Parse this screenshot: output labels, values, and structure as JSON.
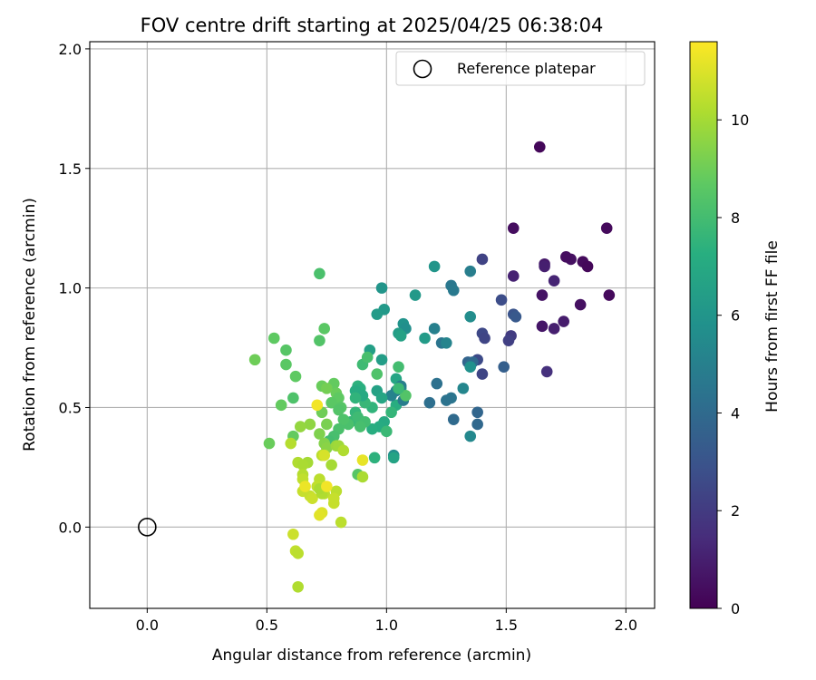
{
  "chart_data": {
    "type": "scatter",
    "title": "FOV centre drift starting at 2025/04/25 06:38:04",
    "xlabel": "Angular distance from reference (arcmin)",
    "ylabel": "Rotation from reference (arcmin)",
    "xlim": [
      -0.24,
      2.12
    ],
    "ylim": [
      -0.34,
      2.03
    ],
    "xticks": [
      "0.0",
      "0.5",
      "1.0",
      "1.5",
      "2.0"
    ],
    "yticks": [
      "0.0",
      "0.5",
      "1.0",
      "1.5",
      "2.0"
    ],
    "grid": true,
    "legend": {
      "placement": "top-right",
      "entries": [
        "Reference platepar"
      ]
    },
    "reference_point": {
      "x": 0.0,
      "y": 0.0,
      "label": "Reference platepar"
    },
    "colorbar": {
      "label": "Hours from first FF file",
      "range": [
        0,
        11.6
      ],
      "ticks": [
        "0",
        "2",
        "4",
        "6",
        "8",
        "10"
      ],
      "colormap": "viridis"
    },
    "points": [
      [
        1.64,
        1.59,
        0.2
      ],
      [
        1.92,
        1.25,
        0.3
      ],
      [
        1.53,
        1.25,
        0.4
      ],
      [
        1.65,
        0.97,
        0.6
      ],
      [
        1.66,
        1.1,
        0.8
      ],
      [
        1.66,
        1.09,
        1.0
      ],
      [
        1.53,
        1.05,
        1.1
      ],
      [
        1.7,
        1.03,
        1.2
      ],
      [
        1.77,
        1.12,
        0.5
      ],
      [
        1.75,
        1.13,
        0.4
      ],
      [
        1.82,
        1.11,
        0.3
      ],
      [
        1.84,
        1.09,
        0.2
      ],
      [
        1.93,
        0.97,
        0.3
      ],
      [
        1.81,
        0.93,
        0.5
      ],
      [
        1.65,
        0.84,
        0.7
      ],
      [
        1.74,
        0.86,
        0.9
      ],
      [
        1.7,
        0.83,
        1.0
      ],
      [
        1.67,
        0.65,
        1.6
      ],
      [
        1.52,
        0.8,
        2.0
      ],
      [
        1.51,
        0.78,
        2.2
      ],
      [
        1.4,
        1.12,
        2.3
      ],
      [
        1.4,
        0.81,
        2.5
      ],
      [
        1.41,
        0.79,
        2.4
      ],
      [
        1.38,
        0.7,
        2.6
      ],
      [
        1.4,
        0.64,
        2.4
      ],
      [
        1.48,
        0.95,
        2.7
      ],
      [
        1.53,
        0.89,
        3.0
      ],
      [
        1.54,
        0.88,
        3.2
      ],
      [
        1.49,
        0.67,
        3.5
      ],
      [
        1.34,
        0.69,
        3.7
      ],
      [
        1.36,
        0.69,
        3.9
      ],
      [
        1.35,
        0.68,
        4.1
      ],
      [
        1.38,
        0.48,
        3.8
      ],
      [
        1.38,
        0.43,
        3.9
      ],
      [
        1.28,
        0.45,
        4.0
      ],
      [
        1.18,
        0.52,
        4.2
      ],
      [
        1.21,
        0.6,
        4.3
      ],
      [
        1.27,
        0.54,
        4.5
      ],
      [
        1.25,
        0.53,
        4.4
      ],
      [
        1.23,
        0.77,
        4.5
      ],
      [
        1.27,
        1.01,
        4.6
      ],
      [
        1.28,
        0.99,
        4.7
      ],
      [
        1.35,
        1.07,
        4.9
      ],
      [
        1.2,
        0.83,
        5.0
      ],
      [
        1.25,
        0.77,
        5.2
      ],
      [
        1.32,
        0.58,
        5.3
      ],
      [
        1.35,
        0.38,
        5.4
      ],
      [
        1.35,
        0.88,
        5.6
      ],
      [
        1.35,
        0.67,
        5.8
      ],
      [
        1.2,
        1.09,
        6.0
      ],
      [
        1.12,
        0.97,
        6.2
      ],
      [
        1.16,
        0.79,
        6.3
      ],
      [
        1.07,
        0.85,
        5.9
      ],
      [
        1.08,
        0.83,
        5.7
      ],
      [
        1.05,
        0.81,
        6.4
      ],
      [
        1.06,
        0.8,
        6.6
      ],
      [
        1.04,
        0.62,
        6.8
      ],
      [
        1.06,
        0.58,
        7.0
      ],
      [
        1.04,
        0.51,
        7.2
      ],
      [
        1.07,
        0.53,
        4.8
      ],
      [
        1.06,
        0.59,
        4.9
      ],
      [
        1.04,
        0.57,
        5.0
      ],
      [
        1.02,
        0.55,
        5.1
      ],
      [
        1.03,
        0.3,
        5.6
      ],
      [
        1.03,
        0.29,
        6.7
      ],
      [
        0.98,
        1.0,
        6.0
      ],
      [
        0.99,
        0.91,
        6.2
      ],
      [
        0.96,
        0.89,
        6.3
      ],
      [
        0.98,
        0.7,
        6.4
      ],
      [
        0.93,
        0.74,
        6.5
      ],
      [
        0.96,
        0.57,
        6.6
      ],
      [
        0.98,
        0.54,
        6.8
      ],
      [
        0.99,
        0.44,
        7.0
      ],
      [
        0.97,
        0.42,
        7.1
      ],
      [
        0.94,
        0.41,
        7.2
      ],
      [
        0.95,
        0.29,
        7.4
      ],
      [
        0.94,
        0.5,
        7.5
      ],
      [
        0.91,
        0.52,
        7.7
      ],
      [
        0.9,
        0.68,
        7.9
      ],
      [
        0.92,
        0.71,
        8.1
      ],
      [
        0.96,
        0.64,
        8.3
      ],
      [
        1.08,
        0.55,
        8.4
      ],
      [
        1.05,
        0.67,
        8.0
      ],
      [
        1.05,
        0.58,
        7.8
      ],
      [
        1.02,
        0.48,
        7.6
      ],
      [
        1.0,
        0.4,
        7.8
      ],
      [
        0.88,
        0.59,
        7.4
      ],
      [
        0.89,
        0.58,
        7.3
      ],
      [
        0.87,
        0.57,
        7.1
      ],
      [
        0.9,
        0.55,
        7.0
      ],
      [
        0.87,
        0.54,
        7.5
      ],
      [
        0.87,
        0.48,
        7.6
      ],
      [
        0.85,
        0.44,
        7.7
      ],
      [
        0.88,
        0.46,
        7.9
      ],
      [
        0.91,
        0.44,
        8.0
      ],
      [
        0.89,
        0.42,
        8.1
      ],
      [
        0.84,
        0.43,
        8.2
      ],
      [
        0.88,
        0.22,
        8.5
      ],
      [
        0.72,
        1.06,
        8.2
      ],
      [
        0.72,
        0.78,
        8.4
      ],
      [
        0.74,
        0.83,
        8.6
      ],
      [
        0.78,
        0.6,
        8.8
      ],
      [
        0.79,
        0.56,
        8.9
      ],
      [
        0.8,
        0.54,
        8.7
      ],
      [
        0.77,
        0.52,
        8.6
      ],
      [
        0.81,
        0.5,
        8.5
      ],
      [
        0.8,
        0.49,
        8.4
      ],
      [
        0.82,
        0.45,
        8.3
      ],
      [
        0.8,
        0.41,
        8.2
      ],
      [
        0.78,
        0.38,
        8.1
      ],
      [
        0.76,
        0.36,
        8.0
      ],
      [
        0.73,
        0.59,
        8.9
      ],
      [
        0.73,
        0.48,
        9.0
      ],
      [
        0.75,
        0.58,
        9.1
      ],
      [
        0.75,
        0.43,
        9.2
      ],
      [
        0.72,
        0.39,
        9.3
      ],
      [
        0.74,
        0.35,
        9.4
      ],
      [
        0.75,
        0.33,
        9.5
      ],
      [
        0.68,
        0.43,
        9.6
      ],
      [
        0.64,
        0.42,
        9.7
      ],
      [
        0.53,
        0.79,
        8.7
      ],
      [
        0.58,
        0.74,
        8.5
      ],
      [
        0.58,
        0.68,
        8.6
      ],
      [
        0.62,
        0.63,
        8.7
      ],
      [
        0.61,
        0.54,
        8.3
      ],
      [
        0.56,
        0.51,
        8.8
      ],
      [
        0.61,
        0.38,
        8.8
      ],
      [
        0.51,
        0.35,
        8.9
      ],
      [
        0.45,
        0.7,
        9.0
      ],
      [
        0.79,
        0.34,
        9.8
      ],
      [
        0.8,
        0.34,
        9.9
      ],
      [
        0.82,
        0.32,
        10.2
      ],
      [
        0.77,
        0.26,
        10.0
      ],
      [
        0.73,
        0.3,
        10.4
      ],
      [
        0.67,
        0.27,
        10.0
      ],
      [
        0.63,
        0.27,
        10.2
      ],
      [
        0.65,
        0.26,
        10.1
      ],
      [
        0.6,
        0.35,
        10.3
      ],
      [
        0.65,
        0.22,
        10.3
      ],
      [
        0.65,
        0.2,
        10.5
      ],
      [
        0.72,
        0.2,
        10.4
      ],
      [
        0.71,
        0.17,
        10.5
      ],
      [
        0.65,
        0.15,
        10.6
      ],
      [
        0.68,
        0.13,
        10.6
      ],
      [
        0.69,
        0.12,
        10.7
      ],
      [
        0.74,
        0.14,
        10.4
      ],
      [
        0.73,
        0.14,
        10.2
      ],
      [
        0.72,
        0.16,
        10.1
      ],
      [
        0.79,
        0.15,
        10.4
      ],
      [
        0.78,
        0.1,
        10.6
      ],
      [
        0.78,
        0.12,
        10.6
      ],
      [
        0.81,
        0.02,
        10.4
      ],
      [
        0.9,
        0.21,
        10.1
      ],
      [
        0.9,
        0.28,
        11.2
      ],
      [
        0.71,
        0.51,
        11.4
      ],
      [
        0.74,
        0.3,
        10.9
      ],
      [
        0.75,
        0.17,
        11.4
      ],
      [
        0.73,
        0.06,
        11.0
      ],
      [
        0.72,
        0.05,
        11.1
      ],
      [
        0.66,
        0.17,
        11.3
      ],
      [
        0.61,
        -0.03,
        10.7
      ],
      [
        0.62,
        -0.1,
        10.5
      ],
      [
        0.63,
        -0.11,
        10.4
      ],
      [
        0.63,
        -0.25,
        10.2
      ]
    ]
  }
}
